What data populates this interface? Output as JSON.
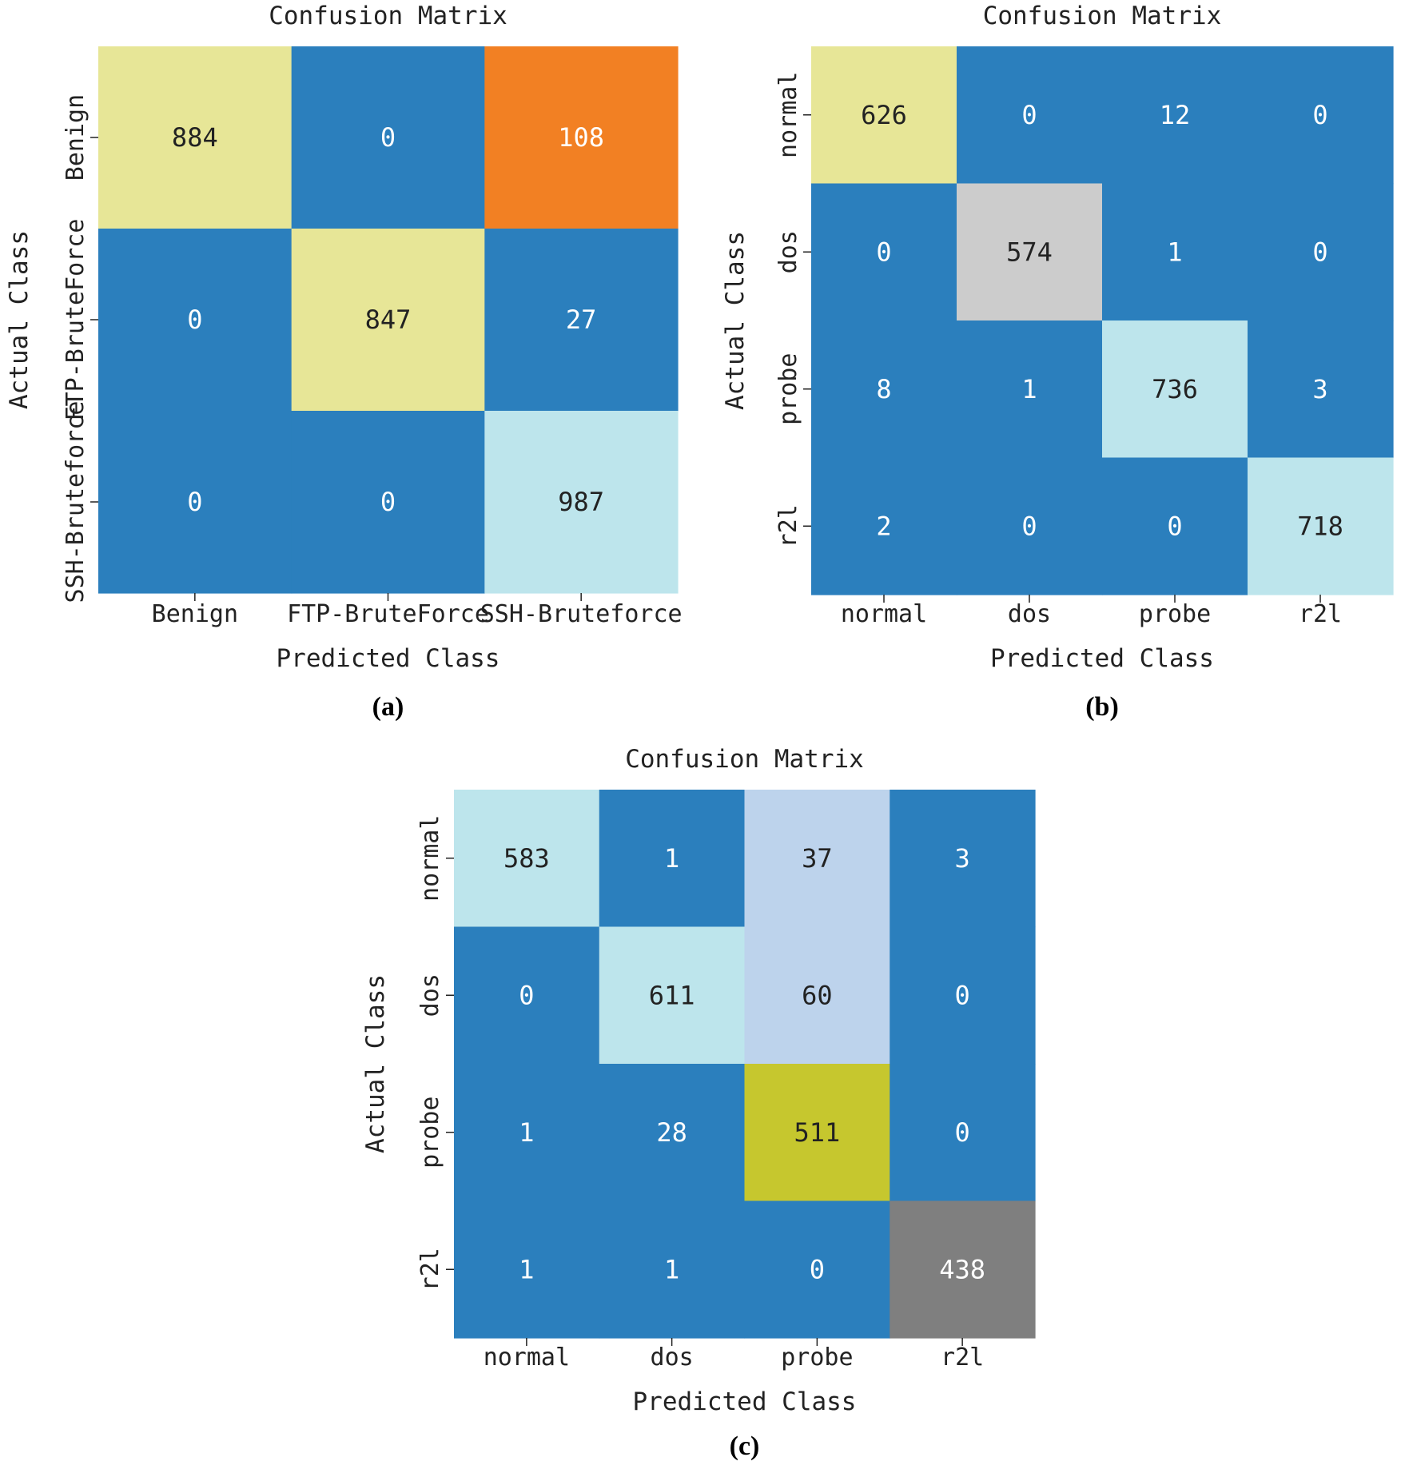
{
  "chart_data": [
    {
      "type": "heatmap",
      "panel_label": "(a)",
      "title": "Confusion Matrix",
      "xlabel": "Predicted Class",
      "ylabel": "Actual Class",
      "x_categories": [
        "Benign",
        "FTP-BruteForce",
        "SSH-Bruteforce"
      ],
      "y_categories": [
        "Benign",
        "FTP-BruteForce",
        "SSH-Bruteforce"
      ],
      "values": [
        [
          884,
          0,
          108
        ],
        [
          0,
          847,
          27
        ],
        [
          0,
          0,
          987
        ]
      ],
      "cell_colors": [
        [
          "#e7e697",
          "#2b7fbd",
          "#f28023"
        ],
        [
          "#2b7fbd",
          "#e7e697",
          "#2b7fbd"
        ],
        [
          "#2b7fbd",
          "#2b7fbd",
          "#bde5ec"
        ]
      ],
      "text_colors": [
        [
          "#222222",
          "#ffffff",
          "#ffffff"
        ],
        [
          "#ffffff",
          "#222222",
          "#ffffff"
        ],
        [
          "#ffffff",
          "#ffffff",
          "#222222"
        ]
      ]
    },
    {
      "type": "heatmap",
      "panel_label": "(b)",
      "title": "Confusion Matrix",
      "xlabel": "Predicted Class",
      "ylabel": "Actual Class",
      "x_categories": [
        "normal",
        "dos",
        "probe",
        "r2l"
      ],
      "y_categories": [
        "normal",
        "dos",
        "probe",
        "r2l"
      ],
      "values": [
        [
          626,
          0,
          12,
          0
        ],
        [
          0,
          574,
          1,
          0
        ],
        [
          8,
          1,
          736,
          3
        ],
        [
          2,
          0,
          0,
          718
        ]
      ],
      "cell_colors": [
        [
          "#e7e697",
          "#2b7fbd",
          "#2b7fbd",
          "#2b7fbd"
        ],
        [
          "#2b7fbd",
          "#cccccc",
          "#2b7fbd",
          "#2b7fbd"
        ],
        [
          "#2b7fbd",
          "#2b7fbd",
          "#bde5ec",
          "#2b7fbd"
        ],
        [
          "#2b7fbd",
          "#2b7fbd",
          "#2b7fbd",
          "#bde5ec"
        ]
      ],
      "text_colors": [
        [
          "#222222",
          "#ffffff",
          "#ffffff",
          "#ffffff"
        ],
        [
          "#ffffff",
          "#222222",
          "#ffffff",
          "#ffffff"
        ],
        [
          "#ffffff",
          "#ffffff",
          "#222222",
          "#ffffff"
        ],
        [
          "#ffffff",
          "#ffffff",
          "#ffffff",
          "#222222"
        ]
      ]
    },
    {
      "type": "heatmap",
      "panel_label": "(c)",
      "title": "Confusion Matrix",
      "xlabel": "Predicted Class",
      "ylabel": "Actual Class",
      "x_categories": [
        "normal",
        "dos",
        "probe",
        "r2l"
      ],
      "y_categories": [
        "normal",
        "dos",
        "probe",
        "r2l"
      ],
      "values": [
        [
          583,
          1,
          37,
          3
        ],
        [
          0,
          611,
          60,
          0
        ],
        [
          1,
          28,
          511,
          0
        ],
        [
          1,
          1,
          0,
          438
        ]
      ],
      "cell_colors": [
        [
          "#bde5ec",
          "#2b7fbd",
          "#bdd3ec",
          "#2b7fbd"
        ],
        [
          "#2b7fbd",
          "#bde5ec",
          "#bdd3ec",
          "#2b7fbd"
        ],
        [
          "#2b7fbd",
          "#2b7fbd",
          "#c6c72e",
          "#2b7fbd"
        ],
        [
          "#2b7fbd",
          "#2b7fbd",
          "#2b7fbd",
          "#7f7f7f"
        ]
      ],
      "text_colors": [
        [
          "#222222",
          "#ffffff",
          "#222222",
          "#ffffff"
        ],
        [
          "#ffffff",
          "#222222",
          "#222222",
          "#ffffff"
        ],
        [
          "#ffffff",
          "#ffffff",
          "#222222",
          "#ffffff"
        ],
        [
          "#ffffff",
          "#ffffff",
          "#ffffff",
          "#ffffff"
        ]
      ]
    }
  ]
}
